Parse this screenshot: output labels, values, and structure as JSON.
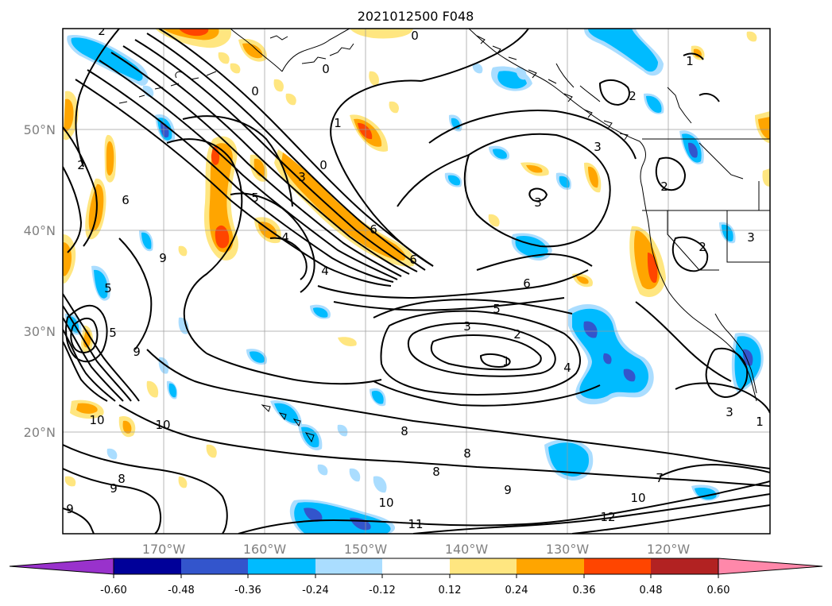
{
  "title": "2021012500 F048",
  "map": {
    "lon_labels": [
      "170°W",
      "160°W",
      "150°W",
      "140°W",
      "130°W",
      "120°W"
    ],
    "lat_labels": [
      "50°N",
      "40°N",
      "30°N",
      "20°N"
    ],
    "lon_range": [
      -180,
      -110
    ],
    "lat_range": [
      10,
      60
    ]
  },
  "colorbar": {
    "tick_labels": [
      "-0.60",
      "-0.48",
      "-0.36",
      "-0.24",
      "-0.12",
      "0.12",
      "0.24",
      "0.36",
      "0.48",
      "0.60"
    ],
    "colors": {
      "lt_neg_060": "#9932cc",
      "neg_060_048": "#000099",
      "neg_048_036": "#3355cc",
      "neg_036_024": "#00bbff",
      "neg_024_012": "#aaddff",
      "neg_012_012": "#ffffff",
      "pos_012_024": "#ffe680",
      "pos_024_036": "#ffa500",
      "pos_036_048": "#ff4500",
      "pos_048_060": "#b22222",
      "gt_060": "#ff88aa"
    }
  },
  "contour_labels": [
    {
      "text": "2",
      "name": "label-2-nw"
    },
    {
      "text": "0",
      "name": "label-0-north"
    },
    {
      "text": "0",
      "name": "label-0-gulf"
    },
    {
      "text": "0",
      "name": "label-0-jet"
    },
    {
      "text": "1",
      "name": "label-1-jet"
    },
    {
      "text": "0",
      "name": "label-0-jet2"
    },
    {
      "text": "3",
      "name": "label-3-jet"
    },
    {
      "text": "2",
      "name": "label-2-west"
    },
    {
      "text": "6",
      "name": "label-6-west"
    },
    {
      "text": "5",
      "name": "label-5-central"
    },
    {
      "text": "4",
      "name": "label-4-central"
    },
    {
      "text": "9",
      "name": "label-9-west"
    },
    {
      "text": "4",
      "name": "label-4-central2"
    },
    {
      "text": "6",
      "name": "label-6-jet"
    },
    {
      "text": "6",
      "name": "label-6-jet2"
    },
    {
      "text": "3",
      "name": "label-3-gulf"
    },
    {
      "text": "3",
      "name": "label-3-bc"
    },
    {
      "text": "1",
      "name": "label-1-canada"
    },
    {
      "text": "2",
      "name": "label-2-canada"
    },
    {
      "text": "2",
      "name": "label-2-coast"
    },
    {
      "text": "2",
      "name": "label-2-coast2"
    },
    {
      "text": "3",
      "name": "label-3-coast"
    },
    {
      "text": "6",
      "name": "label-6-east"
    },
    {
      "text": "5",
      "name": "label-5-east"
    },
    {
      "text": "3",
      "name": "label-3-low"
    },
    {
      "text": "2",
      "name": "label-2-low"
    },
    {
      "text": "1",
      "name": "label-1-low"
    },
    {
      "text": "4",
      "name": "label-4-low"
    },
    {
      "text": "5",
      "name": "label-5-west"
    },
    {
      "text": "5",
      "name": "label-5-west2"
    },
    {
      "text": "9",
      "name": "label-9-west2"
    },
    {
      "text": "10",
      "name": "label-10-west"
    },
    {
      "text": "10",
      "name": "label-10-south"
    },
    {
      "text": "8",
      "name": "label-8-south"
    },
    {
      "text": "8",
      "name": "label-8-south2"
    },
    {
      "text": "8",
      "name": "label-8-south3"
    },
    {
      "text": "9",
      "name": "label-9-south"
    },
    {
      "text": "9",
      "name": "label-9-south2"
    },
    {
      "text": "8",
      "name": "label-8-sw"
    },
    {
      "text": "9",
      "name": "label-9-sw"
    },
    {
      "text": "10",
      "name": "label-10-south2"
    },
    {
      "text": "11",
      "name": "label-11-south"
    },
    {
      "text": "12",
      "name": "label-12-south"
    },
    {
      "text": "10",
      "name": "label-10-se"
    },
    {
      "text": "7",
      "name": "label-7-se"
    },
    {
      "text": "3",
      "name": "label-3-mexico"
    },
    {
      "text": "1",
      "name": "label-1-west"
    }
  ]
}
